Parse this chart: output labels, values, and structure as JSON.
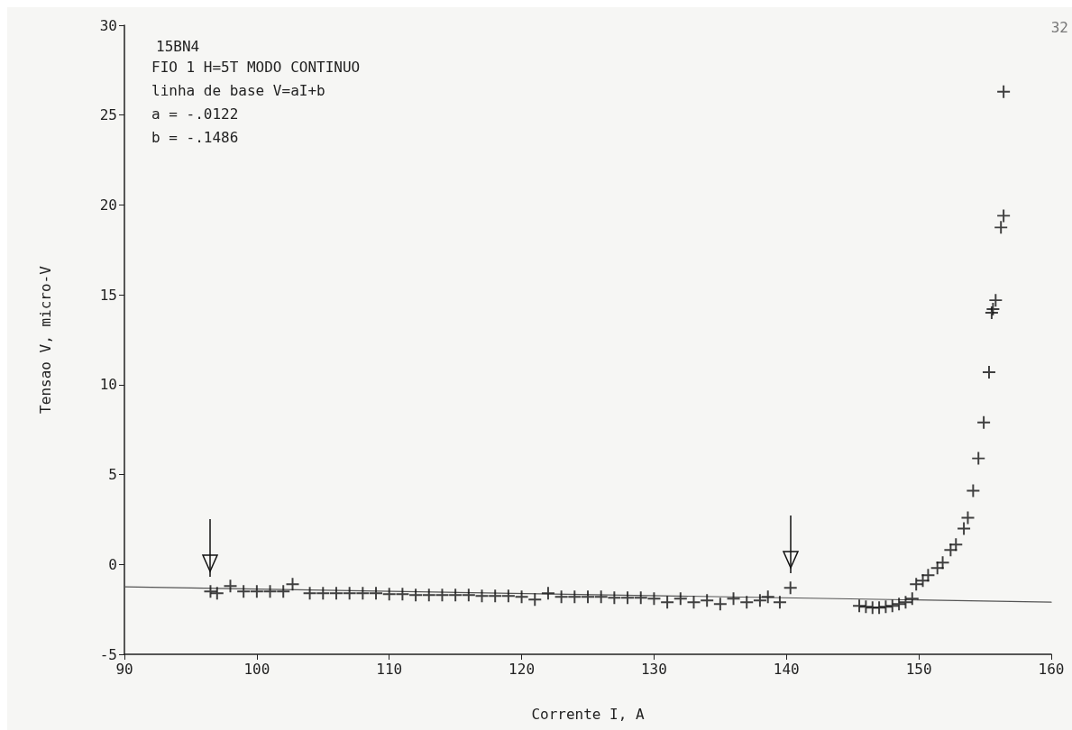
{
  "chart_data": {
    "type": "scatter",
    "title": "15BN4",
    "xlabel": "Corrente I, A",
    "ylabel": "Tensao V, micro-V",
    "annotations": [
      "FIO 1 H=5T MODO CONTINUO",
      "linha de base V=aI+b",
      "a = -.0122",
      "b = -.1486",
      "32"
    ],
    "xlim": [
      90,
      160
    ],
    "xticks": [
      90,
      100,
      110,
      120,
      130,
      140,
      150,
      160
    ],
    "ylim": [
      -5,
      30
    ],
    "yticks": [
      -5,
      0,
      5,
      10,
      15,
      20,
      25,
      30
    ],
    "grid": false,
    "marker": "cross",
    "series": [
      {
        "color": "#111111",
        "x": [
          96.5,
          97,
          98,
          99,
          100,
          101,
          102,
          102.7,
          104,
          105,
          106,
          107,
          108,
          109,
          110,
          111,
          112,
          113,
          114,
          115,
          116,
          117,
          118,
          119,
          120,
          121,
          122,
          123,
          124,
          125,
          126,
          127,
          128,
          129,
          130,
          131,
          132,
          133,
          134,
          135,
          136,
          137,
          138,
          138.6,
          139.5,
          140.3
        ],
        "values": [
          -1.5,
          -1.6,
          -1.2,
          -1.5,
          -1.5,
          -1.5,
          -1.5,
          -1.1,
          -1.6,
          -1.6,
          -1.6,
          -1.6,
          -1.6,
          -1.6,
          -1.65,
          -1.65,
          -1.7,
          -1.7,
          -1.7,
          -1.7,
          -1.7,
          -1.75,
          -1.75,
          -1.75,
          -1.8,
          -1.95,
          -1.6,
          -1.8,
          -1.8,
          -1.8,
          -1.8,
          -1.85,
          -1.85,
          -1.85,
          -1.9,
          -2.1,
          -1.9,
          -2.1,
          -2.0,
          -2.2,
          -1.9,
          -2.1,
          -2.0,
          -1.8,
          -2.1,
          -1.3
        ]
      },
      {
        "color": "#111111",
        "x": [
          145.5,
          146,
          146.5,
          147,
          147.5,
          148,
          148.5,
          149,
          149.5,
          149.8,
          150.3,
          150.7,
          151.4,
          151.8,
          152.4,
          152.8,
          153.4,
          153.7,
          154.1,
          154.5,
          154.9,
          155.3,
          155.5,
          155.6,
          155.8,
          156.2,
          156.4,
          156.4
        ],
        "values": [
          -2.3,
          -2.35,
          -2.4,
          -2.4,
          -2.35,
          -2.3,
          -2.2,
          -2.1,
          -1.9,
          -1.1,
          -0.9,
          -0.6,
          -0.2,
          0.1,
          0.8,
          1.1,
          2.0,
          2.6,
          4.1,
          5.9,
          7.9,
          10.7,
          14.0,
          14.2,
          14.7,
          18.75,
          19.4,
          26.3
        ]
      },
      {
        "type": "line",
        "color": "#555555",
        "line_style": "solid",
        "marker": "none",
        "x": [
          90,
          160
        ],
        "values": [
          -1.25,
          -2.1
        ]
      }
    ]
  }
}
